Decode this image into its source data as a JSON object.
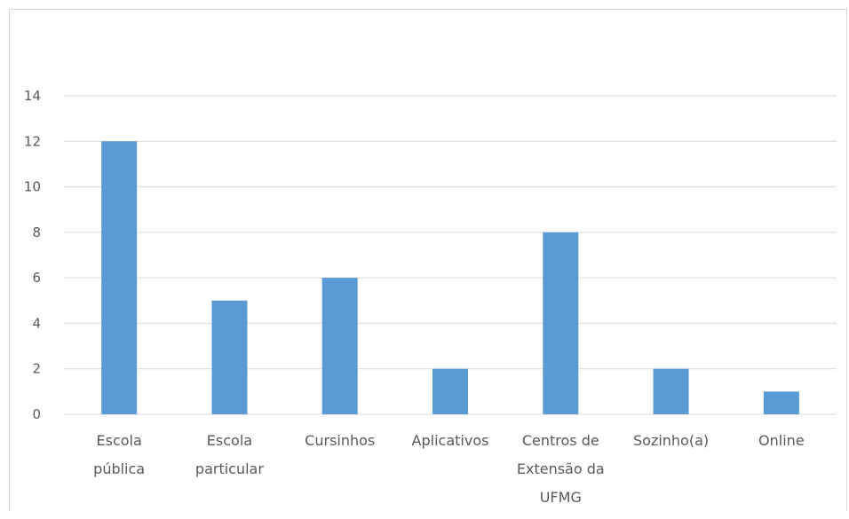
{
  "chart_data": {
    "type": "bar",
    "title": "",
    "xlabel": "",
    "ylabel": "",
    "categories": [
      [
        "Escola",
        "pública"
      ],
      [
        "Escola",
        "particular"
      ],
      [
        "Cursinhos"
      ],
      [
        "Aplicativos"
      ],
      [
        "Centros de",
        "Extensão da",
        "UFMG"
      ],
      [
        "Sozinho(a)"
      ],
      [
        "Online"
      ]
    ],
    "values": [
      12,
      5,
      6,
      2,
      8,
      2,
      1
    ],
    "ylim": [
      0,
      14
    ],
    "yticks": [
      0,
      2,
      4,
      6,
      8,
      10,
      12,
      14
    ],
    "grid": true,
    "legend": "none",
    "colors": {
      "bar": "#5b9bd5",
      "grid": "#d9d9d9",
      "text": "#595959",
      "axis": "#d9d9d9"
    }
  }
}
